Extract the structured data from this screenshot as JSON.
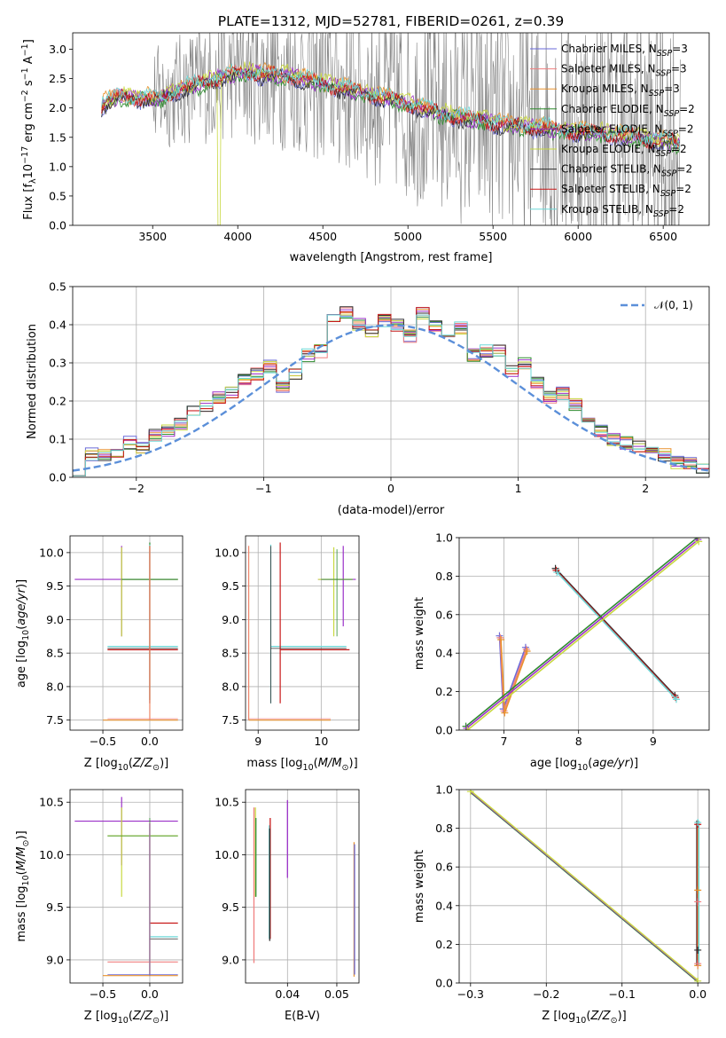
{
  "title": "PLATE=1312, MJD=52781, FIBERID=0261, z=0.39",
  "colors": {
    "Chabrier MILES": "#6a6ad8",
    "Salpeter MILES": "#f08080",
    "Kroupa MILES": "#e8922e",
    "Chabrier ELODIE": "#2e8b2e",
    "Salpeter ELODIE": "#9b30c8",
    "Kroupa ELODIE": "#c8d840",
    "Chabrier STELIB": "#303030",
    "Salpeter STELIB": "#c81818",
    "Kroupa STELIB": "#6ed8d8",
    "data": "#808080",
    "normal": "#5b8fd9"
  },
  "chart_data": [
    {
      "type": "line",
      "panel": "spectrum",
      "title": "PLATE=1312, MJD=52781, FIBERID=0261, z=0.39",
      "xlabel": "wavelength [Angstrom, rest frame]",
      "ylabel": "Flux [f_λ 10^-17 erg cm^-2 s^-1 A^-1]",
      "xlim": [
        3030,
        6770
      ],
      "ylim": [
        0,
        3.28
      ],
      "xticks": [
        "3500",
        "4000",
        "4500",
        "5000",
        "5500",
        "6000",
        "6500"
      ],
      "yticks": [
        "0.0",
        "0.5",
        "1.0",
        "1.5",
        "2.0",
        "2.5",
        "3.0"
      ],
      "grid": false,
      "legend_position": "top-right",
      "series": [
        {
          "name": "Chabrier MILES, N_SSP=3"
        },
        {
          "name": "Salpeter MILES, N_SSP=3"
        },
        {
          "name": "Kroupa MILES, N_SSP=3"
        },
        {
          "name": "Chabrier ELODIE, N_SSP=2"
        },
        {
          "name": "Salpeter ELODIE, N_SSP=2"
        },
        {
          "name": "Kroupa ELODIE, N_SSP=2"
        },
        {
          "name": "Chabrier STELIB, N_SSP=2"
        },
        {
          "name": "Salpeter STELIB, N_SSP=2"
        },
        {
          "name": "Kroupa STELIB, N_SSP=2"
        }
      ],
      "model_trend": {
        "x": [
          3200,
          3300,
          3500,
          3700,
          4000,
          4300,
          4600,
          4900,
          5200,
          5500,
          5800,
          6200,
          6600
        ],
        "y": [
          2.05,
          2.2,
          2.15,
          2.35,
          2.6,
          2.55,
          2.35,
          2.15,
          1.9,
          1.75,
          1.65,
          1.55,
          1.4
        ]
      }
    },
    {
      "type": "line",
      "panel": "residuals",
      "xlabel": "(data-model)/error",
      "ylabel": "Normed distribution",
      "xlim": [
        -2.5,
        2.5
      ],
      "ylim": [
        0,
        0.5
      ],
      "xticks": [
        "−2",
        "−1",
        "0",
        "1",
        "2"
      ],
      "yticks": [
        "0.0",
        "0.1",
        "0.2",
        "0.3",
        "0.4",
        "0.5"
      ],
      "grid": true,
      "legend_position": "top-right",
      "legend": "𝒩(0, 1)",
      "histogram_bin_width": 0.1,
      "histogram_values": [
        0.02,
        0.06,
        0.06,
        0.07,
        0.09,
        0.08,
        0.11,
        0.12,
        0.14,
        0.17,
        0.19,
        0.21,
        0.22,
        0.26,
        0.27,
        0.29,
        0.24,
        0.27,
        0.32,
        0.33,
        0.41,
        0.43,
        0.4,
        0.38,
        0.41,
        0.4,
        0.37,
        0.43,
        0.4,
        0.37,
        0.39,
        0.32,
        0.33,
        0.33,
        0.28,
        0.3,
        0.25,
        0.21,
        0.22,
        0.19,
        0.14,
        0.12,
        0.1,
        0.09,
        0.08,
        0.07,
        0.06,
        0.04,
        0.04,
        0.02
      ]
    },
    {
      "type": "scatter",
      "panel": "age-vs-Z",
      "xlabel": "Z [log10(Z/Z⊙)]",
      "ylabel": "age [log10(age/yr)]",
      "xlim": [
        -0.85,
        0.35
      ],
      "ylim": [
        7.35,
        10.25
      ],
      "xticks": [
        "−0.5",
        "0.0"
      ],
      "yticks": [
        "7.5",
        "8.0",
        "8.5",
        "9.0",
        "9.5",
        "10.0"
      ],
      "grid": true
    },
    {
      "type": "scatter",
      "panel": "age-vs-mass",
      "xlabel": "mass [log10(M/M⊙)]",
      "ylabel": "",
      "xlim": [
        8.8,
        10.6
      ],
      "ylim": [
        7.35,
        10.25
      ],
      "xticks": [
        "9",
        "10"
      ],
      "yticks": [
        "7.5",
        "8.0",
        "8.5",
        "9.0",
        "9.5",
        "10.0"
      ],
      "grid": true
    },
    {
      "type": "line",
      "panel": "mass-weight-vs-age",
      "xlabel": "age [log10(age/yr)]",
      "ylabel": "mass weight",
      "xlim": [
        6.4,
        9.75
      ],
      "ylim": [
        0,
        1
      ],
      "xticks": [
        "7",
        "8",
        "9"
      ],
      "yticks": [
        "0.0",
        "0.2",
        "0.4",
        "0.6",
        "0.8",
        "1.0"
      ],
      "grid": true,
      "series": [
        {
          "x": [
            6.95,
            7.0,
            7.3
          ],
          "y": [
            0.48,
            0.1,
            0.42
          ]
        },
        {
          "x": [
            7.7,
            9.3
          ],
          "y": [
            0.83,
            0.17
          ]
        },
        {
          "x": [
            6.5,
            9.6
          ],
          "y": [
            0.01,
            0.99
          ]
        }
      ]
    },
    {
      "type": "scatter",
      "panel": "mass-vs-Z",
      "xlabel": "Z [log10(Z/Z⊙)]",
      "ylabel": "mass [log10(M/M⊙)]",
      "xlim": [
        -0.85,
        0.35
      ],
      "ylim": [
        8.78,
        10.62
      ],
      "xticks": [
        "−0.5",
        "0.0"
      ],
      "yticks": [
        "9.0",
        "9.5",
        "10.0",
        "10.5"
      ],
      "grid": true
    },
    {
      "type": "scatter",
      "panel": "mass-vs-EBV",
      "xlabel": "E(B-V)",
      "ylabel": "",
      "xlim": [
        0.0315,
        0.0545
      ],
      "ylim": [
        8.78,
        10.62
      ],
      "xticks": [
        "0.04",
        "0.05"
      ],
      "yticks": [
        "9.0",
        "9.5",
        "10.0",
        "10.5"
      ],
      "grid": true
    },
    {
      "type": "line",
      "panel": "mass-weight-vs-Z",
      "xlabel": "Z [log10(Z/Z⊙)]",
      "ylabel": "mass weight",
      "xlim": [
        -0.315,
        0.015
      ],
      "ylim": [
        0,
        1
      ],
      "xticks": [
        "−0.3",
        "−0.2",
        "−0.1",
        "0.0"
      ],
      "yticks": [
        "0.0",
        "0.2",
        "0.4",
        "0.6",
        "0.8",
        "1.0"
      ],
      "grid": true,
      "series": [
        {
          "x": [
            -0.3,
            0.0
          ],
          "y": [
            0.99,
            0.01
          ]
        },
        {
          "x": [
            0.0,
            0.0
          ],
          "y": [
            0.09,
            0.84
          ]
        }
      ]
    }
  ]
}
